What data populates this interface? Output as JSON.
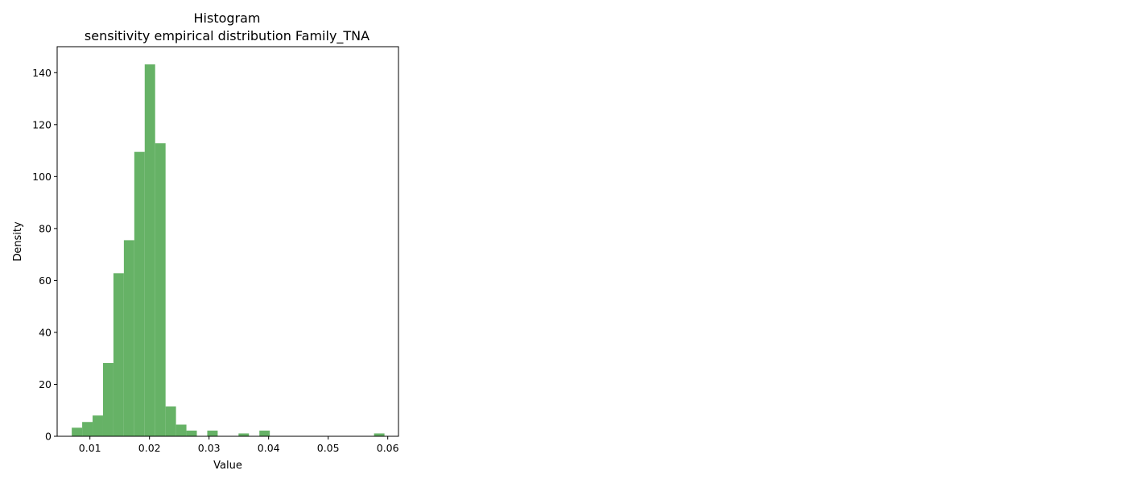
{
  "chart_data": {
    "type": "bar",
    "title": "Histogram",
    "subtitle": "sensitivity empirical distribution Family_TNA",
    "xlabel": "Value",
    "ylabel": "Density",
    "xlim": [
      0.0045,
      0.0618
    ],
    "ylim": [
      0,
      150
    ],
    "xticks": [
      0.01,
      0.02,
      0.03,
      0.04,
      0.05,
      0.06
    ],
    "xtick_labels": [
      "0.01",
      "0.02",
      "0.03",
      "0.04",
      "0.05",
      "0.06"
    ],
    "yticks": [
      0,
      20,
      40,
      60,
      80,
      100,
      120,
      140
    ],
    "ytick_labels": [
      "0",
      "20",
      "40",
      "60",
      "80",
      "100",
      "120",
      "140"
    ],
    "grid": false,
    "color": "#66b266",
    "bin_edges": [
      0.00695,
      0.0087,
      0.01045,
      0.0122,
      0.01395,
      0.0157,
      0.01745,
      0.0192,
      0.02095,
      0.0227,
      0.02445,
      0.0262,
      0.02795,
      0.0297,
      0.03145,
      0.0332,
      0.03495,
      0.0367,
      0.03845,
      0.0402,
      0.04195,
      0.0437,
      0.04545,
      0.0472,
      0.04895,
      0.0507,
      0.05245,
      0.0542,
      0.05595,
      0.0577,
      0.05945
    ],
    "values": [
      3.3,
      5.5,
      8.0,
      28.2,
      62.8,
      75.5,
      109.5,
      143.2,
      112.8,
      11.5,
      4.5,
      2.2,
      0,
      2.2,
      0,
      0,
      1.1,
      0,
      2.2,
      0,
      0,
      0,
      0,
      0,
      0,
      0,
      0,
      0,
      0,
      1.1
    ]
  }
}
